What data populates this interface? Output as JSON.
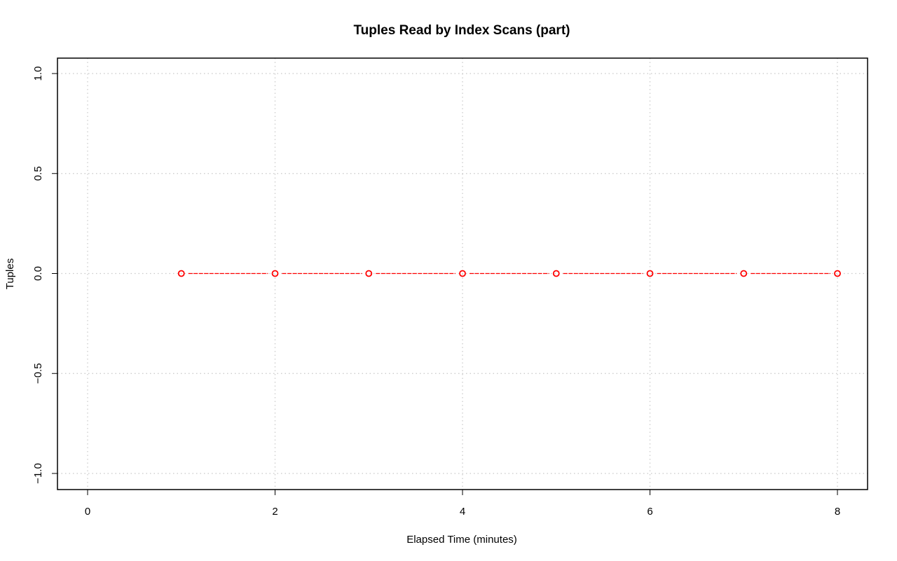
{
  "chart_data": {
    "type": "line",
    "title": "Tuples Read by Index Scans (part)",
    "xlabel": "Elapsed Time (minutes)",
    "ylabel": "Tuples",
    "xlim": [
      0,
      8
    ],
    "ylim": [
      -1,
      1
    ],
    "x_ticks": [
      0,
      2,
      4,
      6,
      8
    ],
    "x_tick_labels": [
      "0",
      "2",
      "4",
      "6",
      "8"
    ],
    "y_ticks": [
      -1,
      -0.5,
      0,
      0.5,
      1
    ],
    "y_tick_labels": [
      "−1.0",
      "−0.5",
      "0.0",
      "0.5",
      "1.0"
    ],
    "grid": true,
    "series": [
      {
        "x": [
          1,
          2,
          3,
          4,
          5,
          6,
          7,
          8
        ],
        "values": [
          0,
          0,
          0,
          0,
          0,
          0,
          0,
          0
        ],
        "color": "#ff0000",
        "line_style": "dashed",
        "marker": "open-circle"
      }
    ]
  }
}
